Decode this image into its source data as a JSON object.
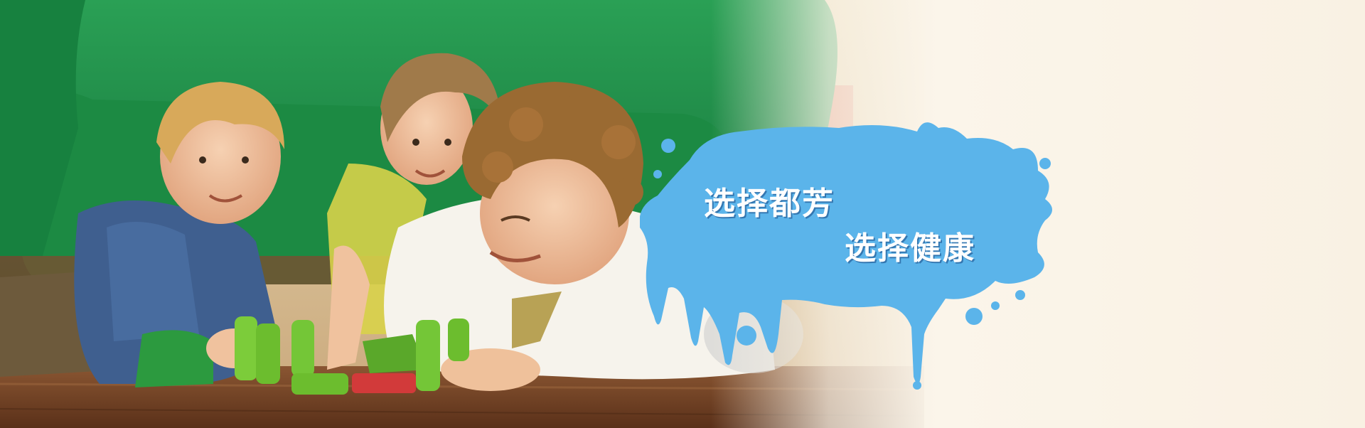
{
  "banner": {
    "slogan_line_1": "选择都芳",
    "slogan_line_2": "选择健康",
    "accent_color": "#5bb4ea",
    "sofa_color": "#1f8f45",
    "floor_color": "#6b3f22",
    "background_color": "#fbf5ea"
  }
}
